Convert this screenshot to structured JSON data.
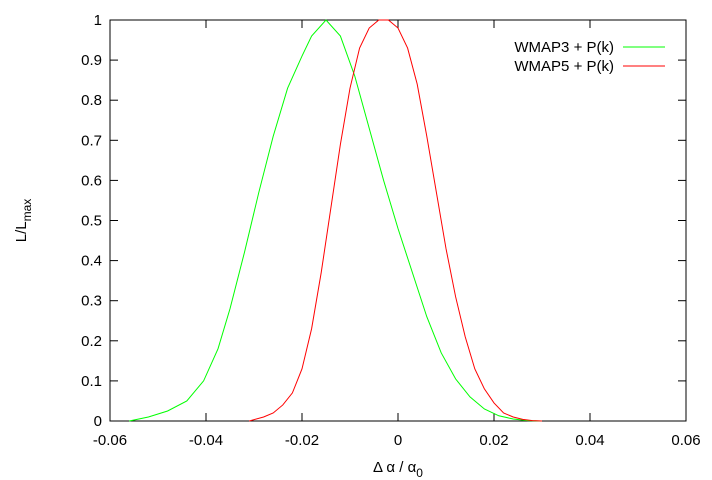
{
  "chart_data": {
    "type": "line",
    "xlabel": {
      "base": "Δ α / α",
      "sub": "0"
    },
    "ylabel": {
      "base": "L/L",
      "sub": "max"
    },
    "xlim": [
      -0.06,
      0.06
    ],
    "ylim": [
      0,
      1
    ],
    "xticks": [
      -0.06,
      -0.04,
      -0.02,
      0,
      0.02,
      0.04,
      0.06
    ],
    "xtick_labels": [
      "-0.06",
      "-0.04",
      "-0.02",
      "0",
      "0.02",
      "0.04",
      "0.06"
    ],
    "yticks": [
      0,
      0.1,
      0.2,
      0.3,
      0.4,
      0.5,
      0.6,
      0.7,
      0.8,
      0.9,
      1
    ],
    "ytick_labels": [
      "0",
      "0.1",
      "0.2",
      "0.3",
      "0.4",
      "0.5",
      "0.6",
      "0.7",
      "0.8",
      "0.9",
      "1"
    ],
    "grid": false,
    "legend_position": "top-right",
    "series": [
      {
        "name": "WMAP3 + P(k)",
        "color": "#00ff00",
        "x": [
          -0.056,
          -0.052,
          -0.048,
          -0.044,
          -0.0405,
          -0.0375,
          -0.035,
          -0.032,
          -0.029,
          -0.026,
          -0.023,
          -0.02,
          -0.018,
          -0.015,
          -0.012,
          -0.009,
          -0.006,
          -0.003,
          0.0,
          0.003,
          0.006,
          0.009,
          0.012,
          0.015,
          0.018,
          0.021,
          0.024,
          0.027,
          0.03
        ],
        "y": [
          0.0,
          0.01,
          0.025,
          0.05,
          0.1,
          0.18,
          0.28,
          0.42,
          0.57,
          0.71,
          0.83,
          0.91,
          0.96,
          1.0,
          0.96,
          0.86,
          0.73,
          0.6,
          0.48,
          0.37,
          0.26,
          0.17,
          0.105,
          0.06,
          0.03,
          0.013,
          0.005,
          0.001,
          0.0
        ]
      },
      {
        "name": "WMAP5 + P(k)",
        "color": "#ff0000",
        "x": [
          -0.031,
          -0.028,
          -0.026,
          -0.024,
          -0.022,
          -0.02,
          -0.018,
          -0.016,
          -0.014,
          -0.012,
          -0.01,
          -0.008,
          -0.006,
          -0.004,
          -0.002,
          0.0,
          0.002,
          0.004,
          0.006,
          0.008,
          0.01,
          0.012,
          0.014,
          0.016,
          0.018,
          0.02,
          0.022,
          0.024,
          0.026,
          0.028,
          0.03
        ],
        "y": [
          0.0,
          0.01,
          0.02,
          0.04,
          0.07,
          0.13,
          0.23,
          0.37,
          0.53,
          0.69,
          0.83,
          0.93,
          0.98,
          1.0,
          1.0,
          0.98,
          0.93,
          0.84,
          0.71,
          0.57,
          0.43,
          0.31,
          0.21,
          0.13,
          0.08,
          0.045,
          0.02,
          0.01,
          0.004,
          0.001,
          0.0
        ]
      }
    ]
  }
}
